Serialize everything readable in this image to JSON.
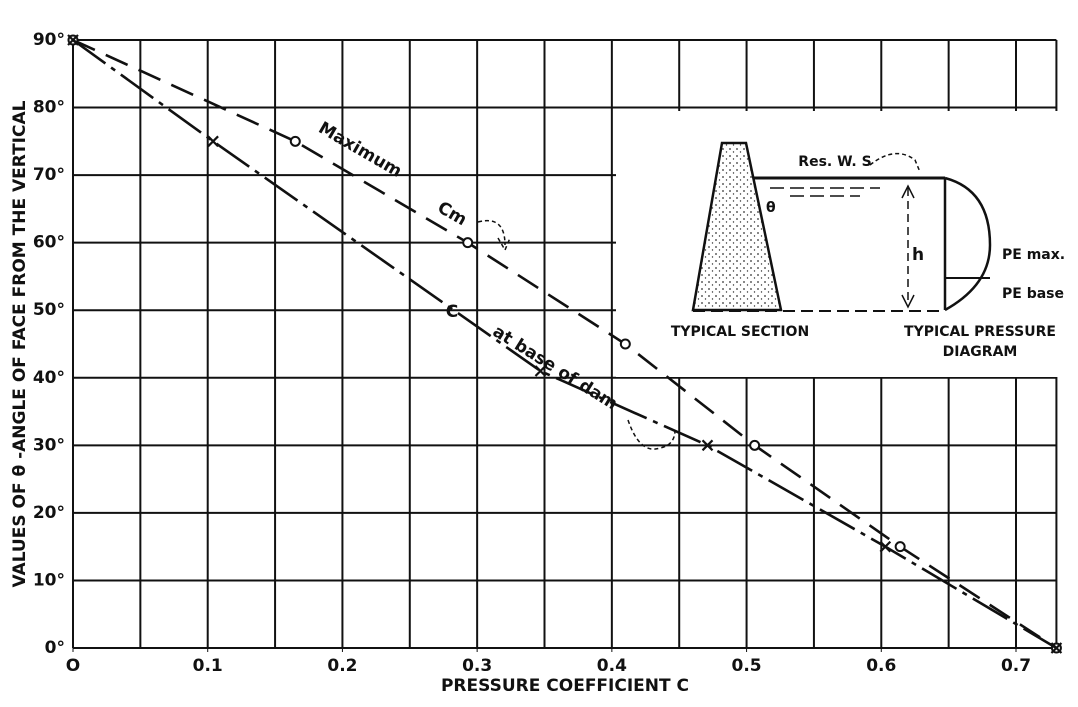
{
  "chart_data": {
    "type": "line",
    "xlabel": "PRESSURE COEFFICIENT C",
    "ylabel": "VALUES OF θ -ANGLE OF FACE FROM THE VERTICAL",
    "xlim": [
      0,
      0.73
    ],
    "ylim": [
      0,
      90
    ],
    "xticks": [
      {
        "value": 0,
        "label": "O"
      },
      0.1,
      0.2,
      0.3,
      0.4,
      0.5,
      0.6,
      0.7
    ],
    "x_gridlines": [
      0,
      0.05,
      0.1,
      0.15,
      0.2,
      0.25,
      0.3,
      0.35,
      0.4,
      0.45,
      0.5,
      0.55,
      0.6,
      0.65,
      0.7
    ],
    "yticks": [
      {
        "value": 0,
        "label": "0°"
      },
      {
        "value": 10,
        "label": "10°"
      },
      {
        "value": 20,
        "label": "20°"
      },
      {
        "value": 30,
        "label": "30°"
      },
      {
        "value": 40,
        "label": "40°"
      },
      {
        "value": 50,
        "label": "50°"
      },
      {
        "value": 60,
        "label": "60°"
      },
      {
        "value": 70,
        "label": "70°"
      },
      {
        "value": 80,
        "label": "80°"
      },
      {
        "value": 90,
        "label": "90°"
      }
    ],
    "grid": true,
    "series": [
      {
        "name": "Maximum Cm",
        "color": "#111111",
        "dash": "24 12",
        "marker": "circle",
        "x": [
          0,
          0.165,
          0.293,
          0.41,
          0.506,
          0.614,
          0.73
        ],
        "values": [
          90,
          75,
          60,
          45,
          30,
          15,
          0
        ]
      },
      {
        "name": "C at base of dam",
        "color": "#111111",
        "dash": "40 7 5 7",
        "marker": "x",
        "x": [
          0,
          0.104,
          0.347,
          0.471,
          0.603,
          0.73
        ],
        "values": [
          90,
          75,
          41,
          30,
          15,
          0
        ]
      }
    ],
    "annotations": [
      "Maximum",
      "Cm",
      "C",
      "at base of dam"
    ],
    "inset": {
      "water_surface": "Res. W. S",
      "angle": "θ",
      "height": "h",
      "max_pressure": "PE max.",
      "base_pressure": "PE base",
      "section_caption": "TYPICAL SECTION",
      "diagram_caption_1": "TYPICAL PRESSURE",
      "diagram_caption_2": "DIAGRAM"
    }
  }
}
